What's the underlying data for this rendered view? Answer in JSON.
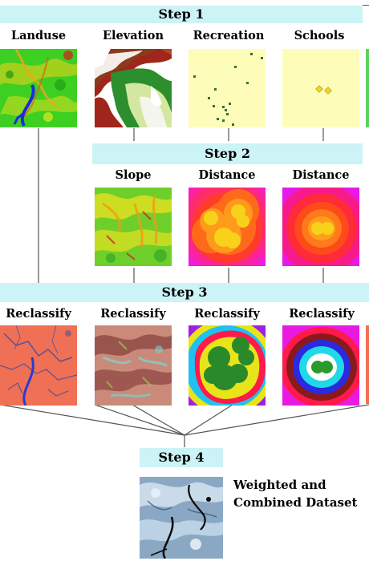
{
  "steps": {
    "step1": "Step 1",
    "step2": "Step 2",
    "step3": "Step 3",
    "step4": "Step 4"
  },
  "inputs": {
    "landuse": "Landuse",
    "elevation": "Elevation",
    "recreation": "Recreation",
    "schools": "Schools"
  },
  "derived": {
    "slope": "Slope",
    "distance_recreation": "Distance",
    "distance_schools": "Distance"
  },
  "reclassify": {
    "r1": "Reclassify",
    "r2": "Reclassify",
    "r3": "Reclassify",
    "r4": "Reclassify"
  },
  "result": {
    "line1": "Weighted and",
    "line2": "Combined Dataset"
  },
  "colors": {
    "step_band": "#ccf3f6",
    "connector": "#555555"
  }
}
